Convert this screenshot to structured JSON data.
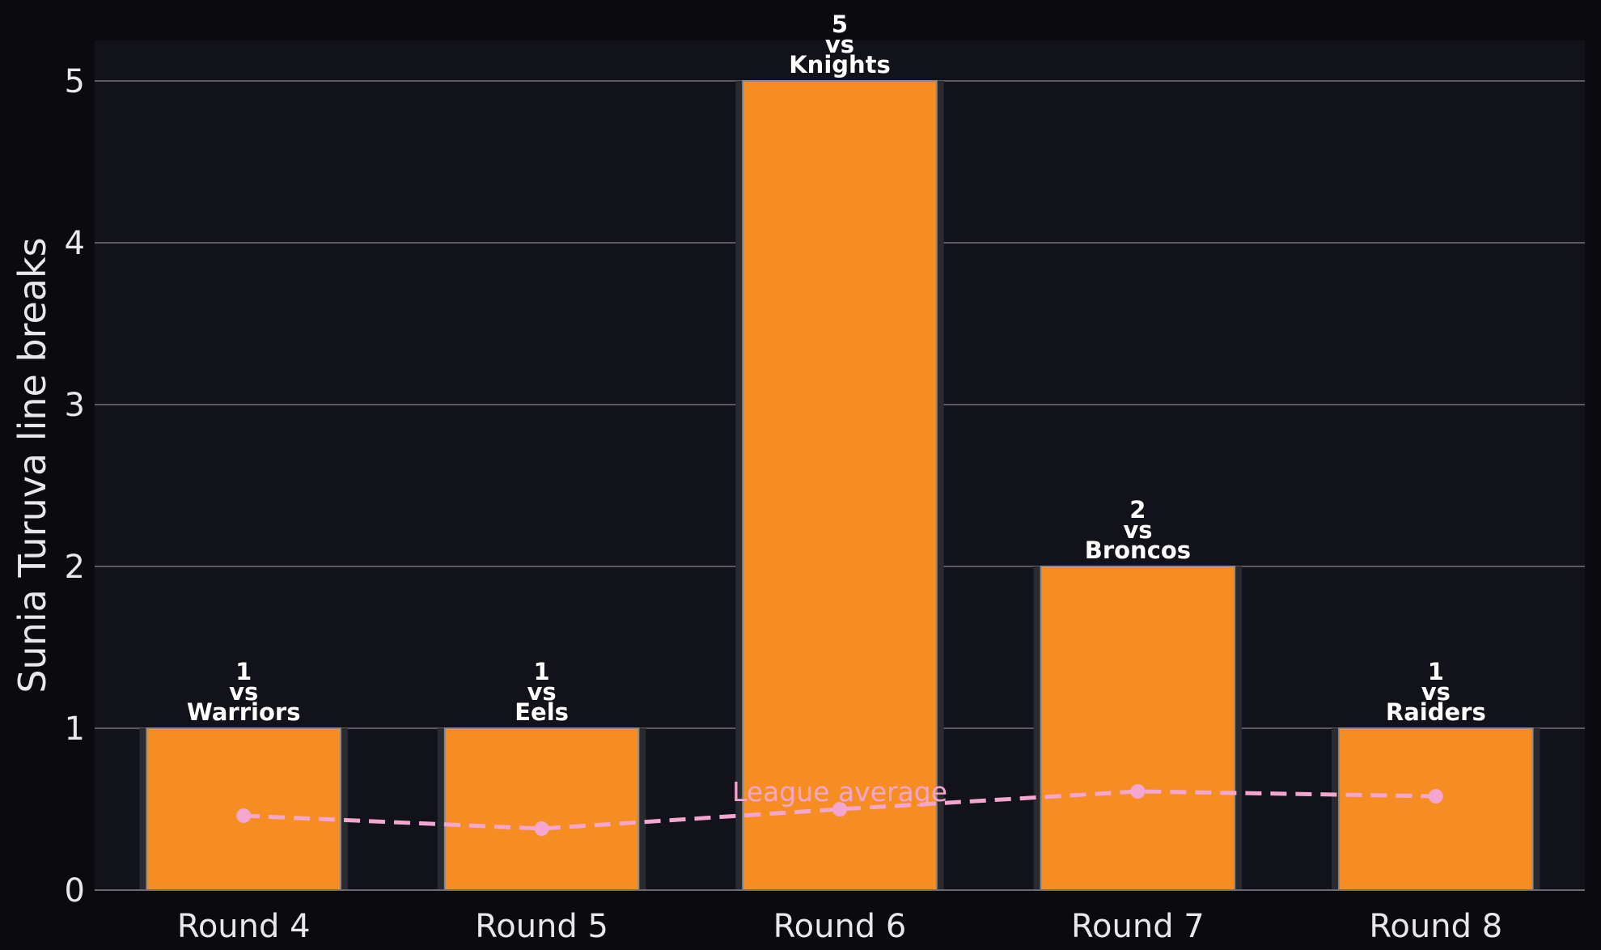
{
  "chart_data": {
    "type": "bar",
    "title": "",
    "xlabel": "",
    "ylabel": "Sunia Turuva line breaks",
    "categories": [
      "Round 4",
      "Round 5",
      "Round 6",
      "Round 7",
      "Round 8"
    ],
    "series": [
      {
        "values": [
          1,
          1,
          5,
          2,
          1
        ],
        "color": "#f68d22"
      },
      {
        "name": "League average",
        "type": "line",
        "values": [
          0.46,
          0.38,
          0.5,
          0.61,
          0.58
        ],
        "color": "#f5a6d0",
        "style": "dashed"
      }
    ],
    "bar_labels": [
      {
        "value": "1",
        "vs": "vs",
        "opponent": "Warriors"
      },
      {
        "value": "1",
        "vs": "vs",
        "opponent": "Eels"
      },
      {
        "value": "5",
        "vs": "vs",
        "opponent": "Knights"
      },
      {
        "value": "2",
        "vs": "vs",
        "opponent": "Broncos"
      },
      {
        "value": "1",
        "vs": "vs",
        "opponent": "Raiders"
      }
    ],
    "average_label": "League average",
    "yticks": [
      0,
      1,
      2,
      3,
      4,
      5
    ],
    "ylim": [
      0,
      5.25
    ],
    "grid": true,
    "colors": {
      "background": "#0b0b0f",
      "plot_background": "#12131a",
      "grid": "#5a5a60",
      "text": "#e8e8ec"
    }
  }
}
